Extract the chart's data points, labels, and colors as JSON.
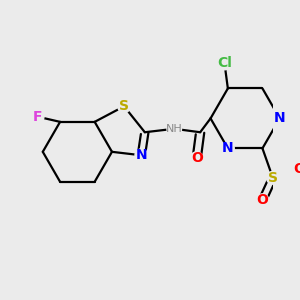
{
  "background_color": "#ebebeb",
  "bond_color": "#000000",
  "bond_width": 1.6,
  "figsize": [
    3.0,
    3.0
  ],
  "dpi": 100,
  "colors": {
    "F": "#dd44dd",
    "S": "#bbaa00",
    "N": "#0000ff",
    "O": "#ff0000",
    "Cl": "#44bb44",
    "H": "#888888",
    "C": "#000000"
  }
}
